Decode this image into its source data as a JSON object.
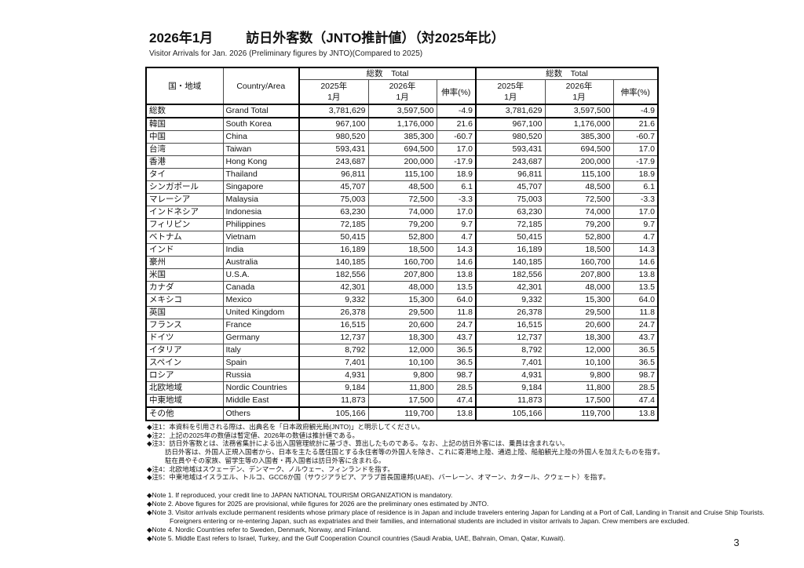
{
  "page": {
    "number": "3"
  },
  "header": {
    "title_date": "2026年1月",
    "title_main": "訪日外客数（JNTO推計値）（対2025年比）",
    "subtitle_en": "Visitor Arrivals for Jan. 2026 (Preliminary figures by JNTO)(Compared to 2025)"
  },
  "table": {
    "header": {
      "country_jp": "国・地域",
      "country_en": "Country/Area",
      "group_total": "総数　Total",
      "year_2025": "2025年",
      "year_2026": "2026年",
      "month": "1月",
      "growth": "伸率(%)"
    },
    "rows": [
      {
        "jp": "総数",
        "en": "Grand Total",
        "v2025": "3,781,629",
        "v2026": "3,597,500",
        "pct": "-4.9"
      },
      {
        "jp": "韓国",
        "en": "South Korea",
        "v2025": "967,100",
        "v2026": "1,176,000",
        "pct": "21.6"
      },
      {
        "jp": "中国",
        "en": "China",
        "v2025": "980,520",
        "v2026": "385,300",
        "pct": "-60.7"
      },
      {
        "jp": "台湾",
        "en": "Taiwan",
        "v2025": "593,431",
        "v2026": "694,500",
        "pct": "17.0"
      },
      {
        "jp": "香港",
        "en": "Hong Kong",
        "v2025": "243,687",
        "v2026": "200,000",
        "pct": "-17.9"
      },
      {
        "jp": "タイ",
        "en": "Thailand",
        "v2025": "96,811",
        "v2026": "115,100",
        "pct": "18.9"
      },
      {
        "jp": "シンガポール",
        "en": "Singapore",
        "v2025": "45,707",
        "v2026": "48,500",
        "pct": "6.1"
      },
      {
        "jp": "マレーシア",
        "en": "Malaysia",
        "v2025": "75,003",
        "v2026": "72,500",
        "pct": "-3.3"
      },
      {
        "jp": "インドネシア",
        "en": "Indonesia",
        "v2025": "63,230",
        "v2026": "74,000",
        "pct": "17.0"
      },
      {
        "jp": "フィリピン",
        "en": "Philippines",
        "v2025": "72,185",
        "v2026": "79,200",
        "pct": "9.7"
      },
      {
        "jp": "ベトナム",
        "en": "Vietnam",
        "v2025": "50,415",
        "v2026": "52,800",
        "pct": "4.7"
      },
      {
        "jp": "インド",
        "en": "India",
        "v2025": "16,189",
        "v2026": "18,500",
        "pct": "14.3"
      },
      {
        "jp": "豪州",
        "en": "Australia",
        "v2025": "140,185",
        "v2026": "160,700",
        "pct": "14.6"
      },
      {
        "jp": "米国",
        "en": "U.S.A.",
        "v2025": "182,556",
        "v2026": "207,800",
        "pct": "13.8"
      },
      {
        "jp": "カナダ",
        "en": "Canada",
        "v2025": "42,301",
        "v2026": "48,000",
        "pct": "13.5"
      },
      {
        "jp": "メキシコ",
        "en": "Mexico",
        "v2025": "9,332",
        "v2026": "15,300",
        "pct": "64.0"
      },
      {
        "jp": "英国",
        "en": "United Kingdom",
        "v2025": "26,378",
        "v2026": "29,500",
        "pct": "11.8"
      },
      {
        "jp": "フランス",
        "en": "France",
        "v2025": "16,515",
        "v2026": "20,600",
        "pct": "24.7"
      },
      {
        "jp": "ドイツ",
        "en": "Germany",
        "v2025": "12,737",
        "v2026": "18,300",
        "pct": "43.7"
      },
      {
        "jp": "イタリア",
        "en": "Italy",
        "v2025": "8,792",
        "v2026": "12,000",
        "pct": "36.5"
      },
      {
        "jp": "スペイン",
        "en": "Spain",
        "v2025": "7,401",
        "v2026": "10,100",
        "pct": "36.5"
      },
      {
        "jp": "ロシア",
        "en": "Russia",
        "v2025": "4,931",
        "v2026": "9,800",
        "pct": "98.7"
      },
      {
        "jp": "北欧地域",
        "en": "Nordic Countries",
        "v2025": "9,184",
        "v2026": "11,800",
        "pct": "28.5"
      },
      {
        "jp": "中東地域",
        "en": "Middle East",
        "v2025": "11,873",
        "v2026": "17,500",
        "pct": "47.4"
      },
      {
        "jp": "その他",
        "en": "Others",
        "v2025": "105,166",
        "v2026": "119,700",
        "pct": "13.8"
      }
    ]
  },
  "notes_jp": [
    {
      "text": "◆注1：本資料を引用される際は、出典名を「日本政府観光局(JNTO)」と明示してください。",
      "indent": false
    },
    {
      "text": "◆注2：上記の2025年の数値は暫定値、2026年の数値は推計値である。",
      "indent": false
    },
    {
      "text": "◆注3：訪日外客数とは、法務省集計による出入国管理統計に基づき、算出したものである。なお、上記の訪日外客には、乗員は含まれない。",
      "indent": false
    },
    {
      "text": "訪日外客は、外国人正規入国者から、日本を主たる居住国とする永住者等の外国人を除き、これに寄港地上陸、通過上陸、船舶観光上陸の外国人を加えたものを指す。",
      "indent": true
    },
    {
      "text": "駐在員やその家族、留学生等の入国者・再入国者は訪日外客に含まれる。",
      "indent": true
    },
    {
      "text": "◆注4：北欧地域はスウェーデン、デンマーク、ノルウェー、フィンランドを指す。",
      "indent": false
    },
    {
      "text": "◆注5：中東地域はイスラエル、トルコ、GCC6か国（サウジアラビア、アラブ首長国連邦(UAE)、バーレーン、オマーン、カタール、クウェート）を指す。",
      "indent": false
    }
  ],
  "notes_en": [
    {
      "text": "◆Note 1. If reproduced, your credit line to JAPAN NATIONAL TOURISM ORGANIZATION is mandatory.",
      "indent": false
    },
    {
      "text": "◆Note 2. Above figures for 2025 are provisional, while figures for 2026 are the preliminary ones estimated by JNTO.",
      "indent": false
    },
    {
      "text": "◆Note 3. Visitor arrivals exclude permanent residents whose primary place of residence is in Japan and include travelers entering Japan for Landing at a Port of Call, Landing in Transit and Cruise Ship Tourists.",
      "indent": false
    },
    {
      "text": "Foreigners entering or re-entering Japan, such as expatriates and their families, and international students are included in visitor arrivals to Japan. Crew members are excluded.",
      "indent": true
    },
    {
      "text": "◆Note 4. Nordic Countries refer to Sweden, Denmark, Norway, and Finland.",
      "indent": false
    },
    {
      "text": "◆Note 5. Middle East refers to Israel, Turkey, and the Gulf Cooperation Council countries (Saudi Arabia, UAE, Bahrain, Oman, Qatar, Kuwait).",
      "indent": false
    }
  ]
}
